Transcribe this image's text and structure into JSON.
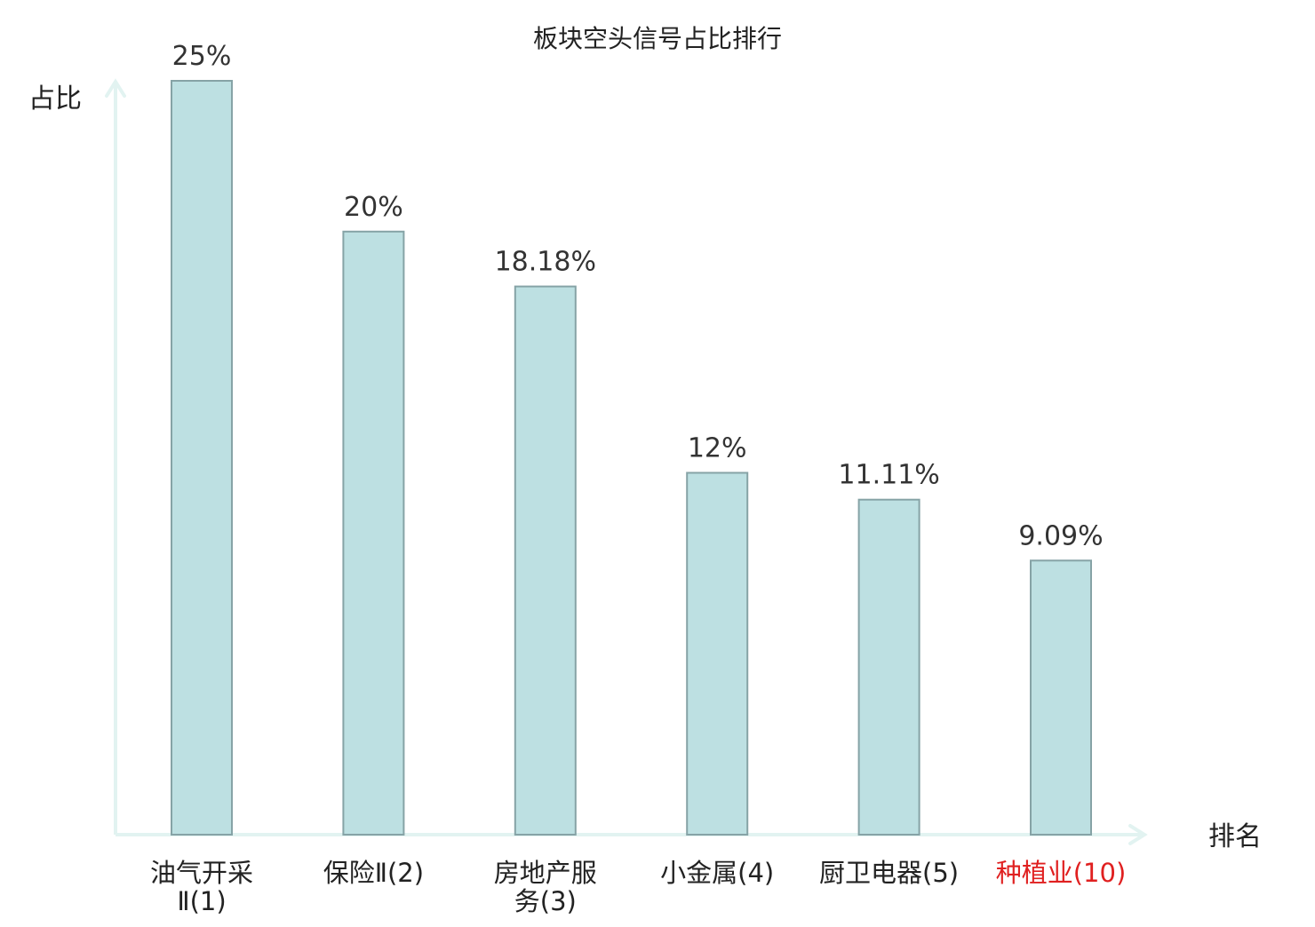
{
  "chart_data": {
    "type": "bar",
    "title": "板块空头信号占比排行",
    "ylabel": "占比",
    "xlabel": "排名",
    "ylim": [
      0,
      25
    ],
    "grid": false,
    "legend": "none",
    "categories": [
      {
        "lines": [
          "油气开采",
          "Ⅱ(1)"
        ],
        "highlight": false
      },
      {
        "lines": [
          "保险Ⅱ(2)"
        ],
        "highlight": false
      },
      {
        "lines": [
          "房地产服",
          "务(3)"
        ],
        "highlight": false
      },
      {
        "lines": [
          "小金属(4)"
        ],
        "highlight": false
      },
      {
        "lines": [
          "厨卫电器(5)"
        ],
        "highlight": false
      },
      {
        "lines": [
          "种植业(10)"
        ],
        "highlight": true
      }
    ],
    "values": [
      25,
      20,
      18.18,
      12,
      11.11,
      9.09
    ],
    "value_labels": [
      "25%",
      "20%",
      "18.18%",
      "12%",
      "11.11%",
      "9.09%"
    ]
  },
  "colors": {
    "bar_fill": "#bde0e2",
    "bar_stroke": "#86a3a6",
    "axis": "#e2f3f1",
    "label_default": "#222222",
    "label_highlight": "#e02020"
  }
}
